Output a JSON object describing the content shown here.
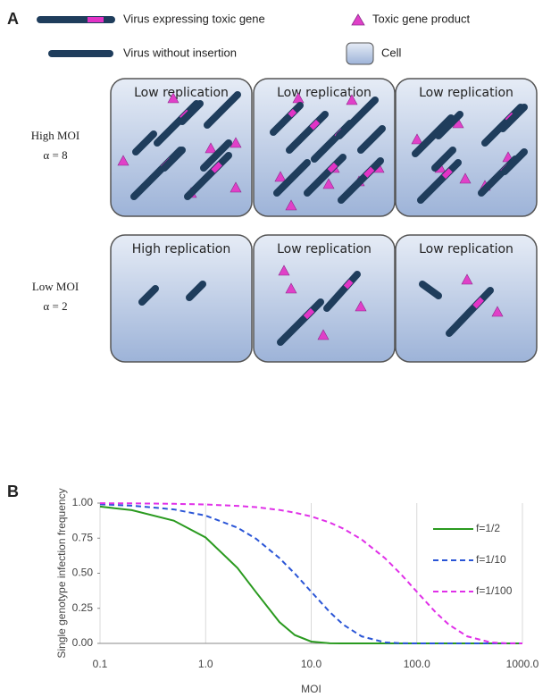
{
  "diagram": {
    "panel_label": "A",
    "legend": {
      "toxic_virus": "Virus expressing toxic gene",
      "product": "Toxic gene product",
      "plain_virus": "Virus without insertion",
      "cell": "Cell"
    },
    "rows": [
      {
        "name": "High MOI",
        "alpha": "α = 8",
        "cells": [
          "Low replication",
          "Low replication",
          "Low replication"
        ]
      },
      {
        "name": "Low MOI",
        "alpha": "α = 2",
        "cells": [
          "High replication",
          "Low replication",
          "Low replication"
        ]
      }
    ]
  },
  "chart_data": {
    "type": "line",
    "panel_label": "B",
    "x_label": "MOI",
    "y_label": "Single genotype infection frequency",
    "xscale": "log",
    "grid": true,
    "legend": "top-right",
    "x": [
      0.1,
      0.2,
      0.5,
      1,
      2,
      3,
      5,
      7,
      10,
      15,
      20,
      30,
      50,
      70,
      100,
      150,
      200,
      300,
      500,
      700,
      1000
    ],
    "series": [
      {
        "name": "f=1/2",
        "color": "#2a9a1f",
        "dash": "solid",
        "values": [
          0.975,
          0.95,
          0.875,
          0.755,
          0.538,
          0.365,
          0.152,
          0.059,
          0.013,
          0.001,
          0,
          0,
          0,
          0,
          0,
          0,
          0,
          0,
          0,
          0,
          0
        ]
      },
      {
        "name": "f=1/10",
        "color": "#2a55d6",
        "dash": "dashed",
        "values": [
          0.991,
          0.982,
          0.955,
          0.911,
          0.825,
          0.746,
          0.608,
          0.497,
          0.368,
          0.223,
          0.135,
          0.05,
          0.007,
          0.001,
          0,
          0,
          0,
          0,
          0,
          0,
          0
        ]
      },
      {
        "name": "f=1/100",
        "color": "#e030e8",
        "dash": "dashed",
        "values": [
          0.999,
          0.998,
          0.995,
          0.99,
          0.98,
          0.971,
          0.951,
          0.932,
          0.905,
          0.861,
          0.819,
          0.741,
          0.607,
          0.497,
          0.368,
          0.223,
          0.135,
          0.05,
          0.007,
          0.001,
          0
        ]
      }
    ],
    "xlim": [
      0.1,
      1000
    ],
    "xticks": [
      0.1,
      {
        "value": 1,
        "label": "1.0"
      },
      {
        "value": 10,
        "label": "10.0"
      },
      {
        "value": 100,
        "label": "100.0"
      },
      {
        "value": 1000,
        "label": "1000.0"
      }
    ],
    "ylim": [
      0,
      1
    ],
    "yticks": [
      {
        "value": 0,
        "label": "0.00"
      },
      {
        "value": 0.25,
        "label": "0.25"
      },
      {
        "value": 0.5,
        "label": "0.50"
      },
      {
        "value": 0.75,
        "label": "0.75"
      },
      {
        "value": 1,
        "label": "1.00"
      }
    ]
  }
}
